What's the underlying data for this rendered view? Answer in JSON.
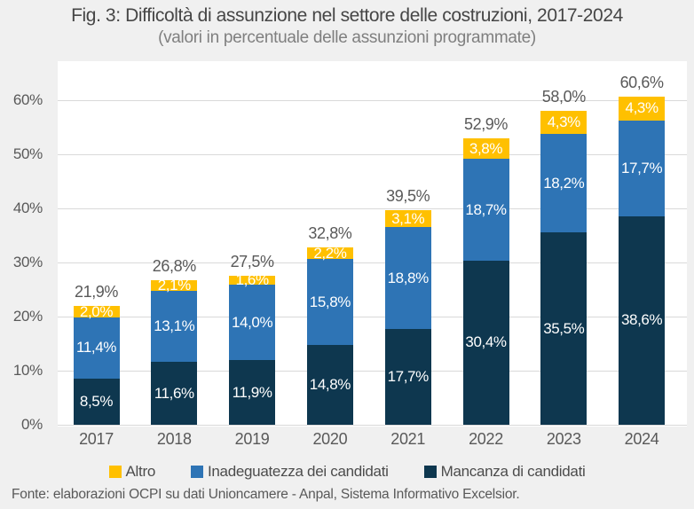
{
  "title": "Fig. 3: Difficoltà di assunzione nel settore delle costruzioni, 2017-2024",
  "subtitle": "(valori in percentuale delle assunzioni programmate)",
  "footer": "Fonte: elaborazioni OCPI su dati Unioncamere - Anpal, Sistema Informativo Excelsior.",
  "colors": {
    "page_background": "#f0f0f0",
    "plot_background": "#ffffff",
    "gridline": "#d9d9d9",
    "title_text": "#464646",
    "subtitle_text": "#7f7f7f",
    "axis_text": "#595959",
    "total_label_text": "#595959",
    "segment_label_text": "#ffffff",
    "series_mancanza": "#0e374f",
    "series_inadeguatezza": "#2e74b5",
    "series_altro": "#ffc000"
  },
  "legend": {
    "items": [
      {
        "label": "Altro",
        "color": "#ffc000"
      },
      {
        "label": "Inadeguatezza dei candidati",
        "color": "#2e74b5"
      },
      {
        "label": "Mancanza di candidati",
        "color": "#0e374f"
      }
    ]
  },
  "chart_data": {
    "type": "bar",
    "stacked": true,
    "title": "Fig. 3: Difficoltà di assunzione nel settore delle costruzioni, 2017-2024",
    "subtitle": "(valori in percentuale delle assunzioni programmate)",
    "categories": [
      "2017",
      "2018",
      "2019",
      "2020",
      "2021",
      "2022",
      "2023",
      "2024"
    ],
    "series": [
      {
        "name": "Mancanza di candidati",
        "color": "#0e374f",
        "values": [
          8.5,
          11.6,
          11.9,
          14.8,
          17.7,
          30.4,
          35.5,
          38.6
        ],
        "labels": [
          "8,5%",
          "11,6%",
          "11,9%",
          "14,8%",
          "17,7%",
          "30,4%",
          "35,5%",
          "38,6%"
        ]
      },
      {
        "name": "Inadeguatezza dei candidati",
        "color": "#2e74b5",
        "values": [
          11.4,
          13.1,
          14.0,
          15.8,
          18.8,
          18.7,
          18.2,
          17.7
        ],
        "labels": [
          "11,4%",
          "13,1%",
          "14,0%",
          "15,8%",
          "18,8%",
          "18,7%",
          "18,2%",
          "17,7%"
        ]
      },
      {
        "name": "Altro",
        "color": "#ffc000",
        "values": [
          2.0,
          2.1,
          1.6,
          2.2,
          3.1,
          3.8,
          4.3,
          4.3
        ],
        "labels": [
          "2,0%",
          "2,1%",
          "1,6%",
          "2,2%",
          "3,1%",
          "3,8%",
          "4,3%",
          "4,3%"
        ]
      }
    ],
    "totals": [
      "21,9%",
      "26,8%",
      "27,5%",
      "32,8%",
      "39,5%",
      "52,9%",
      "58,0%",
      "60,6%"
    ],
    "y_axis": {
      "ticks": [
        {
          "value": 0,
          "label": "0%"
        },
        {
          "value": 10,
          "label": "10%"
        },
        {
          "value": 20,
          "label": "20%"
        },
        {
          "value": 30,
          "label": "30%"
        },
        {
          "value": 40,
          "label": "40%"
        },
        {
          "value": 50,
          "label": "50%"
        },
        {
          "value": 60,
          "label": "60%"
        }
      ]
    },
    "ylim": [
      0,
      67
    ],
    "grid": true,
    "legend_position": "bottom",
    "value_label_format": "italian-comma-percent"
  }
}
